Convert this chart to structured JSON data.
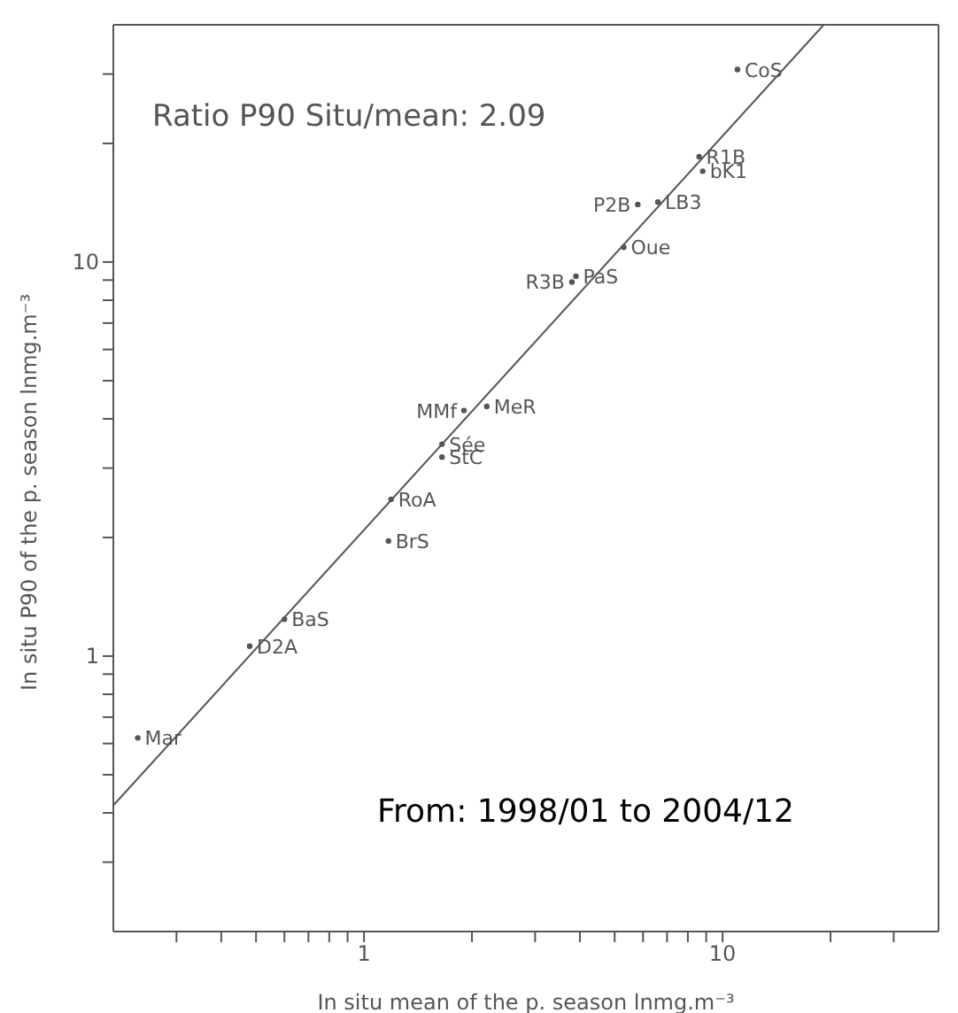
{
  "chart_data": {
    "type": "scatter",
    "xlabel": "In situ mean of the p. season lnmg.m⁻³",
    "ylabel": "In situ P90 of the p. season lnmg.m⁻³",
    "log": "xy",
    "grid": false,
    "xlim": [
      0.2,
      40
    ],
    "ylim": [
      0.2,
      40
    ],
    "xticks": [
      {
        "value": 0.3,
        "label": null
      },
      {
        "value": 0.4,
        "label": null
      },
      {
        "value": 0.5,
        "label": null
      },
      {
        "value": 0.6,
        "label": null
      },
      {
        "value": 0.7,
        "label": null
      },
      {
        "value": 0.8,
        "label": null
      },
      {
        "value": 0.9,
        "label": null
      },
      1,
      {
        "value": 2,
        "label": null
      },
      {
        "value": 3,
        "label": null
      },
      {
        "value": 4,
        "label": null
      },
      {
        "value": 5,
        "label": null
      },
      {
        "value": 6,
        "label": null
      },
      {
        "value": 7,
        "label": null
      },
      {
        "value": 8,
        "label": null
      },
      {
        "value": 9,
        "label": null
      },
      10,
      {
        "value": 20,
        "label": null
      },
      {
        "value": 30,
        "label": null
      }
    ],
    "yticks": [
      {
        "value": 0.3,
        "label": null
      },
      {
        "value": 0.4,
        "label": null
      },
      {
        "value": 0.5,
        "label": null
      },
      {
        "value": 0.6,
        "label": null
      },
      {
        "value": 0.7,
        "label": null
      },
      {
        "value": 0.8,
        "label": null
      },
      {
        "value": 0.9,
        "label": null
      },
      1,
      {
        "value": 2,
        "label": null
      },
      {
        "value": 3,
        "label": null
      },
      {
        "value": 4,
        "label": null
      },
      {
        "value": 5,
        "label": null
      },
      {
        "value": 6,
        "label": null
      },
      {
        "value": 7,
        "label": null
      },
      {
        "value": 8,
        "label": null
      },
      {
        "value": 9,
        "label": null
      },
      10,
      {
        "value": 20,
        "label": null
      },
      {
        "value": 30,
        "label": null
      }
    ],
    "series": [
      {
        "marker": "circle",
        "color": "#555555",
        "x": [
          11.0,
          8.6,
          8.8,
          5.8,
          6.6,
          5.3,
          3.9,
          3.8,
          1.9,
          2.2,
          1.65,
          1.65,
          1.19,
          1.17,
          0.6,
          0.48,
          0.234
        ],
        "values": [
          30.8,
          18.5,
          17.0,
          14.0,
          14.2,
          10.9,
          9.2,
          8.9,
          4.2,
          4.3,
          3.45,
          3.2,
          2.5,
          1.96,
          1.24,
          1.06,
          0.62
        ],
        "value_labels": [
          "CoS",
          "R1B",
          "bK1",
          "P2B",
          "LB3",
          "Oue",
          "PaS",
          "R3B",
          "MMf",
          "MeR",
          "Sée",
          "StC",
          "RoA",
          "BrS",
          "BaS",
          "D2A",
          "Mar"
        ]
      },
      {
        "type": "line",
        "color": "#555555",
        "x": [
          0.2,
          19.14
        ],
        "values": [
          0.418,
          40
        ]
      }
    ],
    "annotations": [
      "Ratio P90 Situ/mean: 2.09",
      "From: 1998/01 to 2004/12"
    ]
  }
}
